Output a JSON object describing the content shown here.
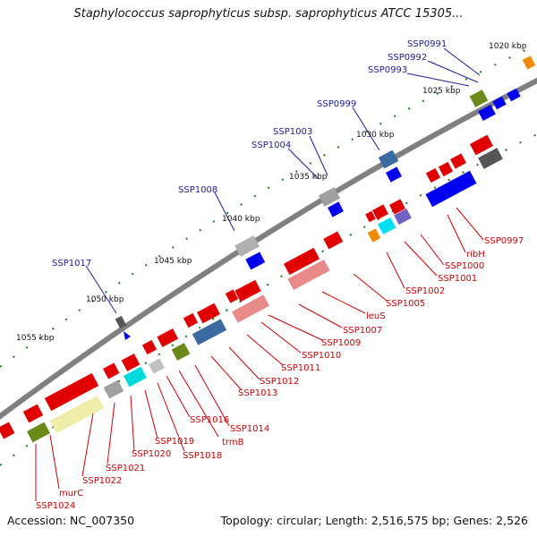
{
  "title": "Staphylococcus saprophyticus subsp. saprophyticus ATCC 15305...",
  "footer": {
    "accession": "Accession: NC_007350",
    "summary": "Topology: circular; Length: 2,516,575 bp; Genes: 2,526"
  },
  "ticks": [
    "1020 kbp",
    "1025 kbp",
    "1030 kbp",
    "1035 kbp",
    "1040 kbp",
    "1045 kbp",
    "1050 kbp",
    "1055 kbp"
  ],
  "colors": {
    "backbone": "#8a8a8a",
    "cds": "#e00000",
    "blue": "#0000f0",
    "tick": "#1a7a1a",
    "label_blue": "#1a1aa0",
    "label_red": "#cc0000"
  },
  "labels_top": [
    "SSP0991",
    "SSP0992",
    "SSP0993",
    "SSP0999",
    "SSP1003",
    "SSP1004",
    "SSP1008",
    "SSP1017"
  ],
  "labels_bottom": [
    "SSP0997",
    "ribH",
    "SSP1000",
    "SSP1001",
    "SSP1002",
    "SSP1005",
    "leuS",
    "SSP1007",
    "SSP1009",
    "SSP1010",
    "SSP1011",
    "SSP1012",
    "SSP1013",
    "SSP1014",
    "trmB",
    "SSP1016",
    "SSP1018",
    "SSP1019",
    "SSP1020",
    "SSP1021",
    "SSP1022",
    "murC",
    "SSP1024"
  ]
}
